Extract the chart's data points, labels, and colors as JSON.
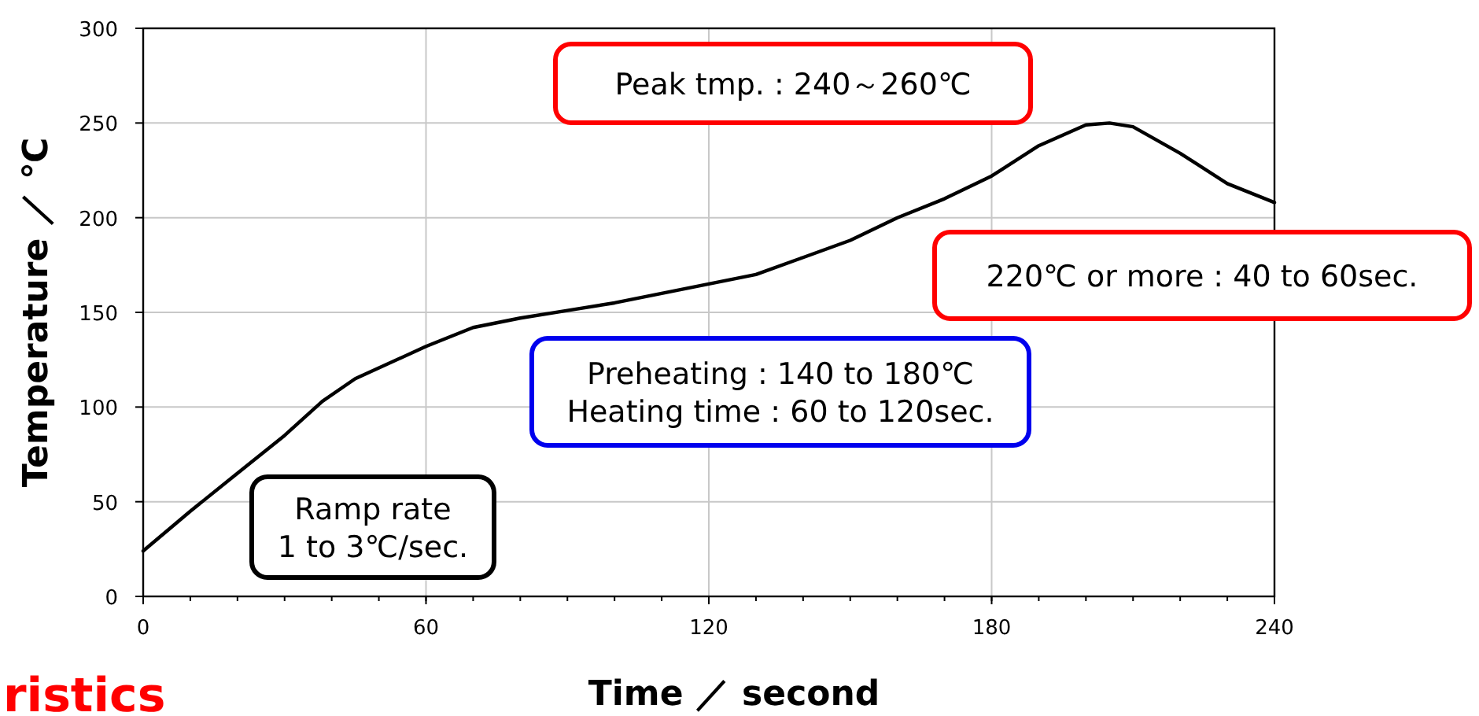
{
  "chart_data": {
    "type": "line",
    "xlabel": "Time ／ second",
    "ylabel": "Temperature ／ ℃",
    "x": [
      0,
      10,
      20,
      30,
      38,
      45,
      60,
      70,
      80,
      90,
      100,
      110,
      120,
      130,
      140,
      150,
      160,
      170,
      180,
      190,
      200,
      205,
      210,
      220,
      230,
      240
    ],
    "series": [
      {
        "color": "#000000",
        "values": [
          24,
          45,
          65,
          85,
          103,
          115,
          132,
          142,
          147,
          151,
          155,
          160,
          165,
          170,
          179,
          188,
          200,
          210,
          222,
          238,
          249,
          250,
          248,
          234,
          218,
          208
        ]
      }
    ],
    "xlim": [
      0,
      240
    ],
    "ylim": [
      0,
      300
    ],
    "xticks": [
      0,
      60,
      120,
      180,
      240
    ],
    "yticks": [
      0,
      50,
      100,
      150,
      200,
      250,
      300
    ],
    "grid": true,
    "annotations": [
      "Peak tmp. : 240～260℃",
      "220℃ or more : 40 to 60sec.",
      "Preheating : 140 to 180℃\nHeating time : 60 to 120sec.",
      "Ramp rate\n1 to 3℃/sec.",
      "ristics"
    ]
  }
}
